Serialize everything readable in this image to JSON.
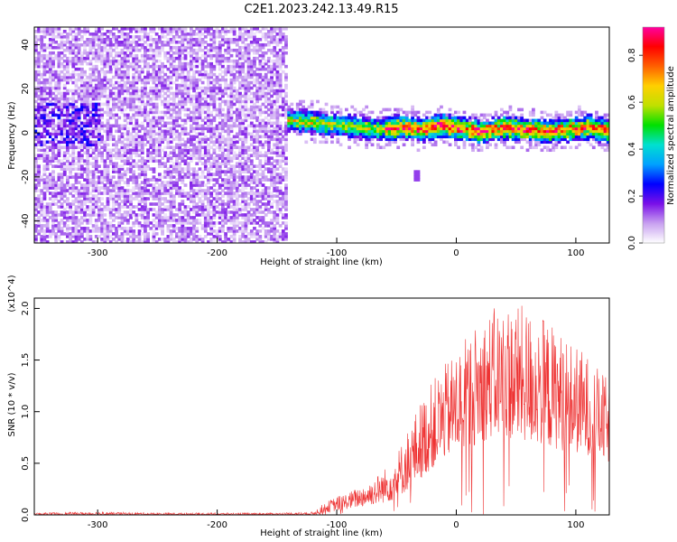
{
  "chart_data": [
    {
      "type": "heatmap",
      "title": "C2E1.2023.242.13.49.R15",
      "xlabel": "Height of straight line (km)",
      "ylabel": "Frequency (Hz)",
      "xlim": [
        -353,
        128
      ],
      "ylim": [
        -50,
        48
      ],
      "x_ticks": [
        -300,
        -200,
        -100,
        0,
        100
      ],
      "y_ticks": [
        -40,
        -20,
        0,
        20,
        40
      ],
      "colorbar": {
        "label": "Normalized spectral amplitude",
        "range": [
          0.0,
          0.92
        ],
        "ticks": [
          "0.0",
          "0.2",
          "0.4",
          "0.6",
          "0.8"
        ],
        "colors": [
          "#ffffff",
          "#c8a0f0",
          "#7a10e8",
          "#0000ff",
          "#00a0ff",
          "#00e0d0",
          "#00e000",
          "#c0e000",
          "#ffd000",
          "#ff6000",
          "#ff0000",
          "#ff00a0"
        ]
      },
      "regions": [
        {
          "name": "noise",
          "x_range": [
            -353,
            -142
          ],
          "freq_range": [
            -50,
            48
          ],
          "amplitude_level": 0.12
        },
        {
          "name": "signal band",
          "x_range": [
            -152,
            128
          ],
          "center_freq": [
            5,
            5,
            4,
            3,
            2,
            1,
            2,
            1,
            3,
            1,
            0,
            2,
            1,
            0,
            1,
            2,
            0
          ],
          "half_width": 5,
          "peak_amplitude": 0.85
        }
      ],
      "annotations": [
        {
          "x": -34,
          "freq": -20,
          "note": "small feature"
        }
      ]
    },
    {
      "type": "line",
      "xlabel": "Height of straight line (km)",
      "ylabel": "SNR (10 * v/v)",
      "y_multiplier": "(x10^4)",
      "xlim": [
        -353,
        128
      ],
      "ylim": [
        0,
        2.1
      ],
      "x_ticks": [
        -300,
        -200,
        -100,
        0,
        100
      ],
      "y_ticks": [
        "0.0",
        "0.5",
        "1.0",
        "1.5",
        "2.0"
      ],
      "series": [
        {
          "color": "#ee3333",
          "x": [
            -353,
            -300,
            -250,
            -200,
            -150,
            -120,
            -110,
            -100,
            -90,
            -80,
            -70,
            -60,
            -50,
            -40,
            -30,
            -20,
            -10,
            0,
            10,
            20,
            30,
            40,
            50,
            60,
            70,
            80,
            90,
            100,
            110,
            120,
            128
          ],
          "envelope_low": [
            0.0,
            0.0,
            0.0,
            0.0,
            0.0,
            0.0,
            0.02,
            0.04,
            0.06,
            0.08,
            0.1,
            0.12,
            0.15,
            0.25,
            0.35,
            0.45,
            0.55,
            0.6,
            0.65,
            0.7,
            0.75,
            0.75,
            0.72,
            0.7,
            0.68,
            0.65,
            0.62,
            0.6,
            0.58,
            0.55,
            0.5
          ],
          "envelope_high": [
            0.02,
            0.03,
            0.02,
            0.02,
            0.02,
            0.03,
            0.12,
            0.18,
            0.22,
            0.28,
            0.35,
            0.45,
            0.6,
            0.85,
            1.1,
            1.3,
            1.45,
            1.6,
            1.75,
            1.9,
            2.0,
            2.05,
            2.05,
            2.0,
            1.95,
            1.85,
            1.75,
            1.65,
            1.55,
            1.4,
            1.3
          ]
        }
      ]
    }
  ]
}
